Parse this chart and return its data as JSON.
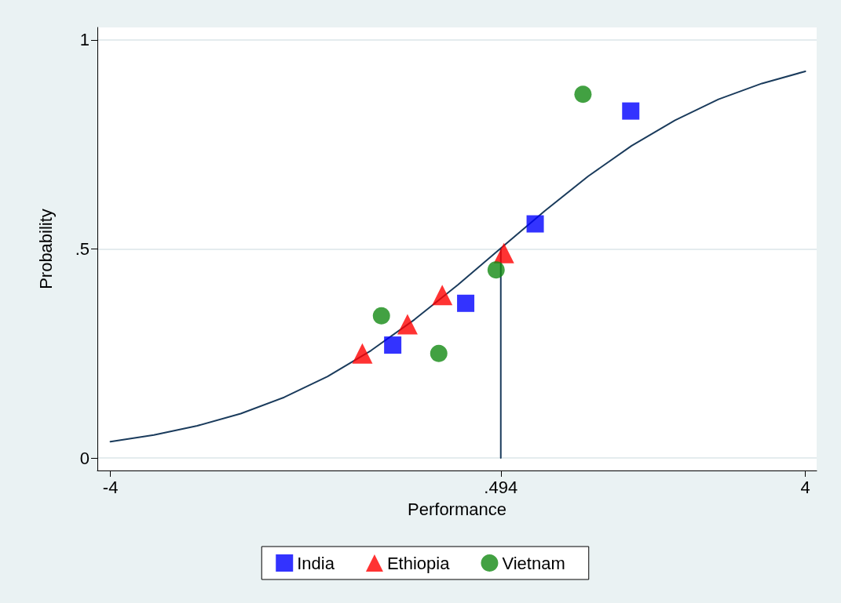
{
  "chart_data": {
    "type": "scatter",
    "xlabel": "Performance",
    "ylabel": "Probability",
    "xlim": [
      -4.15,
      4.13
    ],
    "xticks": [
      -4,
      {
        "value": 0.494,
        "label": ".494"
      },
      4
    ],
    "ylim": [
      -0.03,
      1.03
    ],
    "yticks": [
      0,
      {
        "value": 0.5,
        "label": ".5"
      },
      1
    ],
    "grid": "y",
    "legend": "bottom",
    "series": [
      {
        "name": "India",
        "color": "#0000ff",
        "marker": "square",
        "x": [
          -0.75,
          0.09,
          0.89,
          1.99
        ],
        "values": [
          0.27,
          0.37,
          0.56,
          0.83
        ]
      },
      {
        "name": "Ethiopia",
        "color": "#ff0000",
        "marker": "triangle",
        "x": [
          -1.1,
          -0.58,
          -0.18,
          0.53
        ],
        "values": [
          0.25,
          0.32,
          0.39,
          0.49
        ]
      },
      {
        "name": "Vietnam",
        "color": "#138a13",
        "marker": "circle",
        "x": [
          -0.88,
          -0.22,
          0.44,
          1.44
        ],
        "values": [
          0.34,
          0.25,
          0.45,
          0.87
        ]
      },
      {
        "type": "line",
        "color": "#1a3b5c",
        "marker": "none",
        "line_style": "solid",
        "x": [
          -4,
          -3.5,
          -3,
          -2.5,
          -2,
          -1.5,
          -1,
          -0.5,
          0,
          0.5,
          1,
          1.5,
          2,
          2.5,
          3,
          3.5,
          4
        ],
        "values": [
          0.039,
          0.055,
          0.077,
          0.106,
          0.145,
          0.195,
          0.257,
          0.331,
          0.414,
          0.503,
          0.591,
          0.674,
          0.747,
          0.808,
          0.858,
          0.896,
          0.925
        ]
      },
      {
        "type": "line",
        "color": "#1a3b5c",
        "marker": "none",
        "line_style": "solid",
        "x": [
          0.494,
          0.494
        ],
        "values": [
          0,
          0.5
        ]
      }
    ]
  }
}
